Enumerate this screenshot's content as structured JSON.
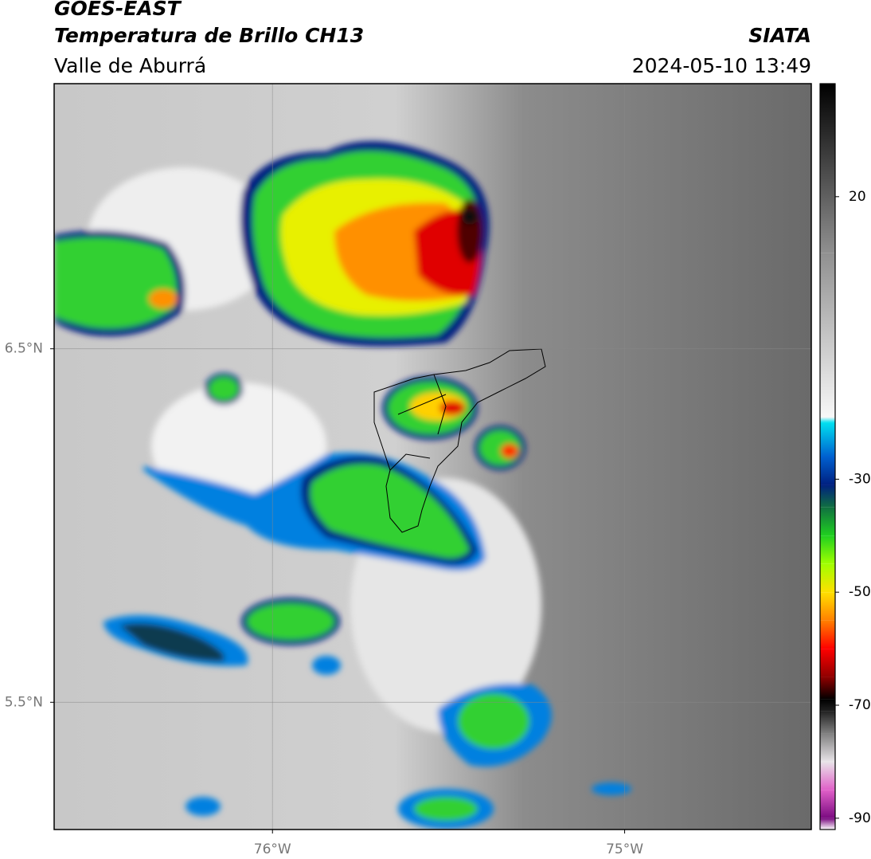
{
  "header": {
    "title": "GOES-EAST",
    "subtitle": "Temperatura de Brillo CH13",
    "region": "Valle de Aburrá",
    "source": "SIATA",
    "datetime": "2024-05-10 13:49"
  },
  "map": {
    "xlim": [
      -76.62,
      -74.47
    ],
    "ylim": [
      5.14,
      7.25
    ],
    "xticks": [
      {
        "value": -76,
        "label": "76°W"
      },
      {
        "value": -75,
        "label": "75°W"
      }
    ],
    "yticks": [
      {
        "value": 6.5,
        "label": "6.5°N"
      },
      {
        "value": 5.5,
        "label": "5.5°N"
      }
    ],
    "grid": true
  },
  "colorbar": {
    "lim": [
      -92,
      40
    ],
    "ticks": [
      20,
      -30,
      -50,
      -70,
      -90
    ],
    "stops": [
      {
        "value": -92,
        "color": "#ffffff"
      },
      {
        "value": -90,
        "color": "#7a0a80"
      },
      {
        "value": -85,
        "color": "#e060c8"
      },
      {
        "value": -80,
        "color": "#e8e4e8"
      },
      {
        "value": -75,
        "color": "#808080"
      },
      {
        "value": -71,
        "color": "#202020"
      },
      {
        "value": -69,
        "color": "#000000"
      },
      {
        "value": -65,
        "color": "#900000"
      },
      {
        "value": -60,
        "color": "#ff0000"
      },
      {
        "value": -55,
        "color": "#ff8000"
      },
      {
        "value": -50,
        "color": "#ffe000"
      },
      {
        "value": -45,
        "color": "#a0ff00"
      },
      {
        "value": -40,
        "color": "#20d020"
      },
      {
        "value": -35,
        "color": "#107040"
      },
      {
        "value": -31,
        "color": "#002080"
      },
      {
        "value": -26,
        "color": "#0060d0"
      },
      {
        "value": -20,
        "color": "#00e0f0"
      },
      {
        "value": -19,
        "color": "#f8f8f8"
      },
      {
        "value": 10,
        "color": "#909090"
      },
      {
        "value": 40,
        "color": "#000000"
      }
    ]
  }
}
